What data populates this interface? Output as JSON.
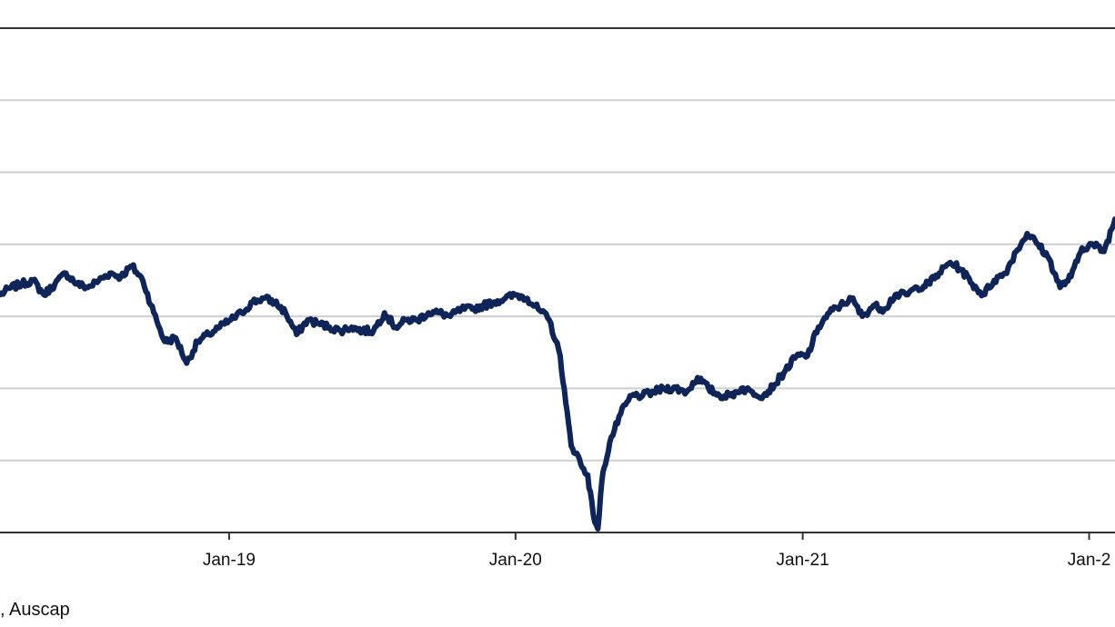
{
  "colors": {
    "series": "#0f2557",
    "grid": "#cfcfcf",
    "axis": "#333333",
    "background": "#ffffff"
  },
  "source_note": ", Auscap",
  "chart_data": {
    "type": "line",
    "title": "",
    "xlabel": "",
    "ylabel": "",
    "x_axis": {
      "kind": "date",
      "range": [
        "2018-03-15",
        "2022-02-03"
      ],
      "tick_dates": [
        "2019-01-01",
        "2020-01-01",
        "2021-01-01",
        "2022-01-01"
      ],
      "tick_labels": [
        "Jan-19",
        "Jan-20",
        "Jan-21",
        "Jan-2"
      ]
    },
    "y_axis": {
      "range": [
        0,
        7
      ],
      "gridlines": [
        1,
        2,
        3,
        4,
        5,
        6
      ],
      "tick_labels_visible": false
    },
    "grid": "horizontal",
    "legend": "none",
    "series": [
      {
        "x": [
          "2018-03-15",
          "2018-03-29",
          "2018-04-12",
          "2018-04-26",
          "2018-05-10",
          "2018-05-24",
          "2018-06-07",
          "2018-06-21",
          "2018-07-05",
          "2018-07-19",
          "2018-08-02",
          "2018-08-16",
          "2018-08-30",
          "2018-09-13",
          "2018-09-27",
          "2018-10-11",
          "2018-10-25",
          "2018-11-08",
          "2018-11-22",
          "2018-12-06",
          "2018-12-20",
          "2019-01-03",
          "2019-01-17",
          "2019-01-31",
          "2019-02-14",
          "2019-02-28",
          "2019-03-14",
          "2019-03-28",
          "2019-04-11",
          "2019-04-25",
          "2019-05-09",
          "2019-05-23",
          "2019-06-06",
          "2019-06-20",
          "2019-07-04",
          "2019-07-18",
          "2019-08-01",
          "2019-08-15",
          "2019-08-29",
          "2019-09-12",
          "2019-09-26",
          "2019-10-10",
          "2019-10-24",
          "2019-11-07",
          "2019-11-21",
          "2019-12-05",
          "2019-12-19",
          "2020-01-02",
          "2020-01-16",
          "2020-01-30",
          "2020-02-13",
          "2020-02-27",
          "2020-03-05",
          "2020-03-12",
          "2020-03-19",
          "2020-03-26",
          "2020-04-02",
          "2020-04-09",
          "2020-04-15",
          "2020-04-20",
          "2020-04-23",
          "2020-04-30",
          "2020-05-14",
          "2020-05-28",
          "2020-06-11",
          "2020-06-25",
          "2020-07-09",
          "2020-07-23",
          "2020-08-06",
          "2020-08-20",
          "2020-09-03",
          "2020-09-17",
          "2020-10-01",
          "2020-10-15",
          "2020-10-29",
          "2020-11-12",
          "2020-11-26",
          "2020-12-10",
          "2020-12-24",
          "2021-01-07",
          "2021-01-21",
          "2021-02-04",
          "2021-02-18",
          "2021-03-04",
          "2021-03-18",
          "2021-04-01",
          "2021-04-15",
          "2021-04-29",
          "2021-05-13",
          "2021-05-27",
          "2021-06-10",
          "2021-06-24",
          "2021-07-08",
          "2021-07-22",
          "2021-08-05",
          "2021-08-19",
          "2021-09-02",
          "2021-09-16",
          "2021-09-30",
          "2021-10-14",
          "2021-10-28",
          "2021-11-11",
          "2021-11-25",
          "2021-12-09",
          "2021-12-23",
          "2022-01-06",
          "2022-01-20",
          "2022-02-03"
        ],
        "values": [
          3.3,
          3.4,
          3.45,
          3.5,
          3.3,
          3.45,
          3.6,
          3.45,
          3.4,
          3.5,
          3.6,
          3.55,
          3.7,
          3.5,
          3.05,
          2.65,
          2.7,
          2.35,
          2.65,
          2.75,
          2.85,
          2.95,
          3.05,
          3.2,
          3.25,
          3.2,
          3.05,
          2.75,
          2.95,
          2.9,
          2.85,
          2.8,
          2.85,
          2.8,
          2.8,
          3.05,
          2.85,
          2.95,
          2.95,
          3.05,
          3.05,
          3.0,
          3.1,
          3.1,
          3.15,
          3.2,
          3.25,
          3.3,
          3.25,
          3.1,
          2.95,
          2.45,
          1.8,
          1.2,
          1.1,
          0.9,
          0.8,
          0.25,
          0.05,
          0.7,
          0.9,
          1.25,
          1.65,
          1.9,
          1.9,
          1.95,
          2.0,
          2.0,
          1.95,
          2.15,
          2.0,
          1.9,
          1.9,
          2.0,
          1.95,
          1.9,
          2.05,
          2.25,
          2.45,
          2.45,
          2.85,
          3.05,
          3.15,
          3.25,
          3.0,
          3.15,
          3.1,
          3.3,
          3.3,
          3.4,
          3.45,
          3.6,
          3.75,
          3.65,
          3.45,
          3.3,
          3.5,
          3.6,
          3.9,
          4.15,
          4.0,
          3.8,
          3.4,
          3.55,
          3.95,
          4.0,
          3.9,
          4.35
        ]
      }
    ]
  }
}
